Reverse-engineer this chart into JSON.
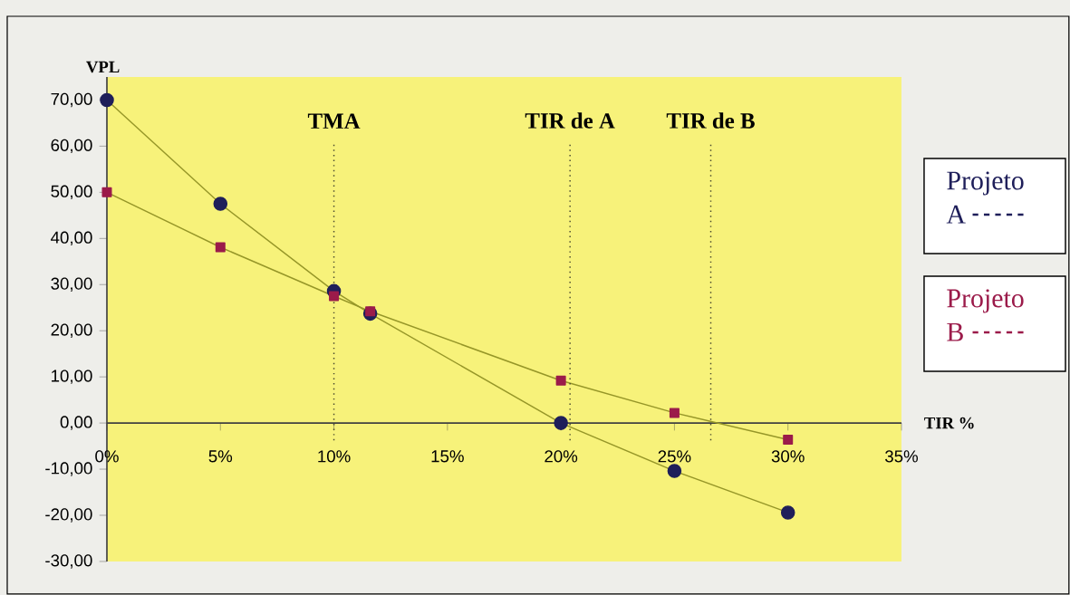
{
  "chart_data": {
    "type": "line",
    "xlabel": "TIR %",
    "ylabel": "VPL",
    "x": [
      0,
      5,
      10,
      11.6,
      20,
      25,
      30
    ],
    "series": [
      {
        "name": "Projeto A",
        "color": "#1f1f5a",
        "marker": "circle",
        "values": [
          70,
          47.5,
          28.6,
          23.7,
          0,
          -10.4,
          -19.4
        ]
      },
      {
        "name": "Projeto B",
        "color": "#9b1b4a",
        "marker": "square",
        "values": [
          50,
          38.1,
          27.5,
          24.2,
          9.2,
          2.2,
          -3.6
        ]
      }
    ],
    "xlim": [
      0,
      35
    ],
    "ylim": [
      -30,
      75
    ],
    "xticks": [
      {
        "value": 0,
        "label": "0%"
      },
      {
        "value": 5,
        "label": "5%"
      },
      {
        "value": 10,
        "label": "10%"
      },
      {
        "value": 15,
        "label": "15%"
      },
      {
        "value": 20,
        "label": "20%"
      },
      {
        "value": 25,
        "label": "25%"
      },
      {
        "value": 30,
        "label": "30%"
      },
      {
        "value": 35,
        "label": "35%"
      }
    ],
    "yticks": [
      {
        "value": -30,
        "label": "-30,00"
      },
      {
        "value": -20,
        "label": "-20,00"
      },
      {
        "value": -10,
        "label": "-10,00"
      },
      {
        "value": 0,
        "label": "0,00"
      },
      {
        "value": 10,
        "label": "10,00"
      },
      {
        "value": 20,
        "label": "20,00"
      },
      {
        "value": 30,
        "label": "30,00"
      },
      {
        "value": 40,
        "label": "40,00"
      },
      {
        "value": 50,
        "label": "50,00"
      },
      {
        "value": 60,
        "label": "60,00"
      },
      {
        "value": 70,
        "label": "70,00"
      }
    ],
    "ref_lines": [
      {
        "axis": "x",
        "value": 10,
        "label": "TMA",
        "color": "#4a4a30",
        "line_style": "dotted"
      },
      {
        "axis": "x",
        "value": 20.4,
        "label": "TIR de A",
        "color": "#4a4a30",
        "line_style": "dotted"
      },
      {
        "axis": "x",
        "value": 26.6,
        "label": "TIR de B",
        "color": "#4a4a30",
        "line_style": "dotted"
      }
    ],
    "grid": false,
    "legend": "right"
  }
}
